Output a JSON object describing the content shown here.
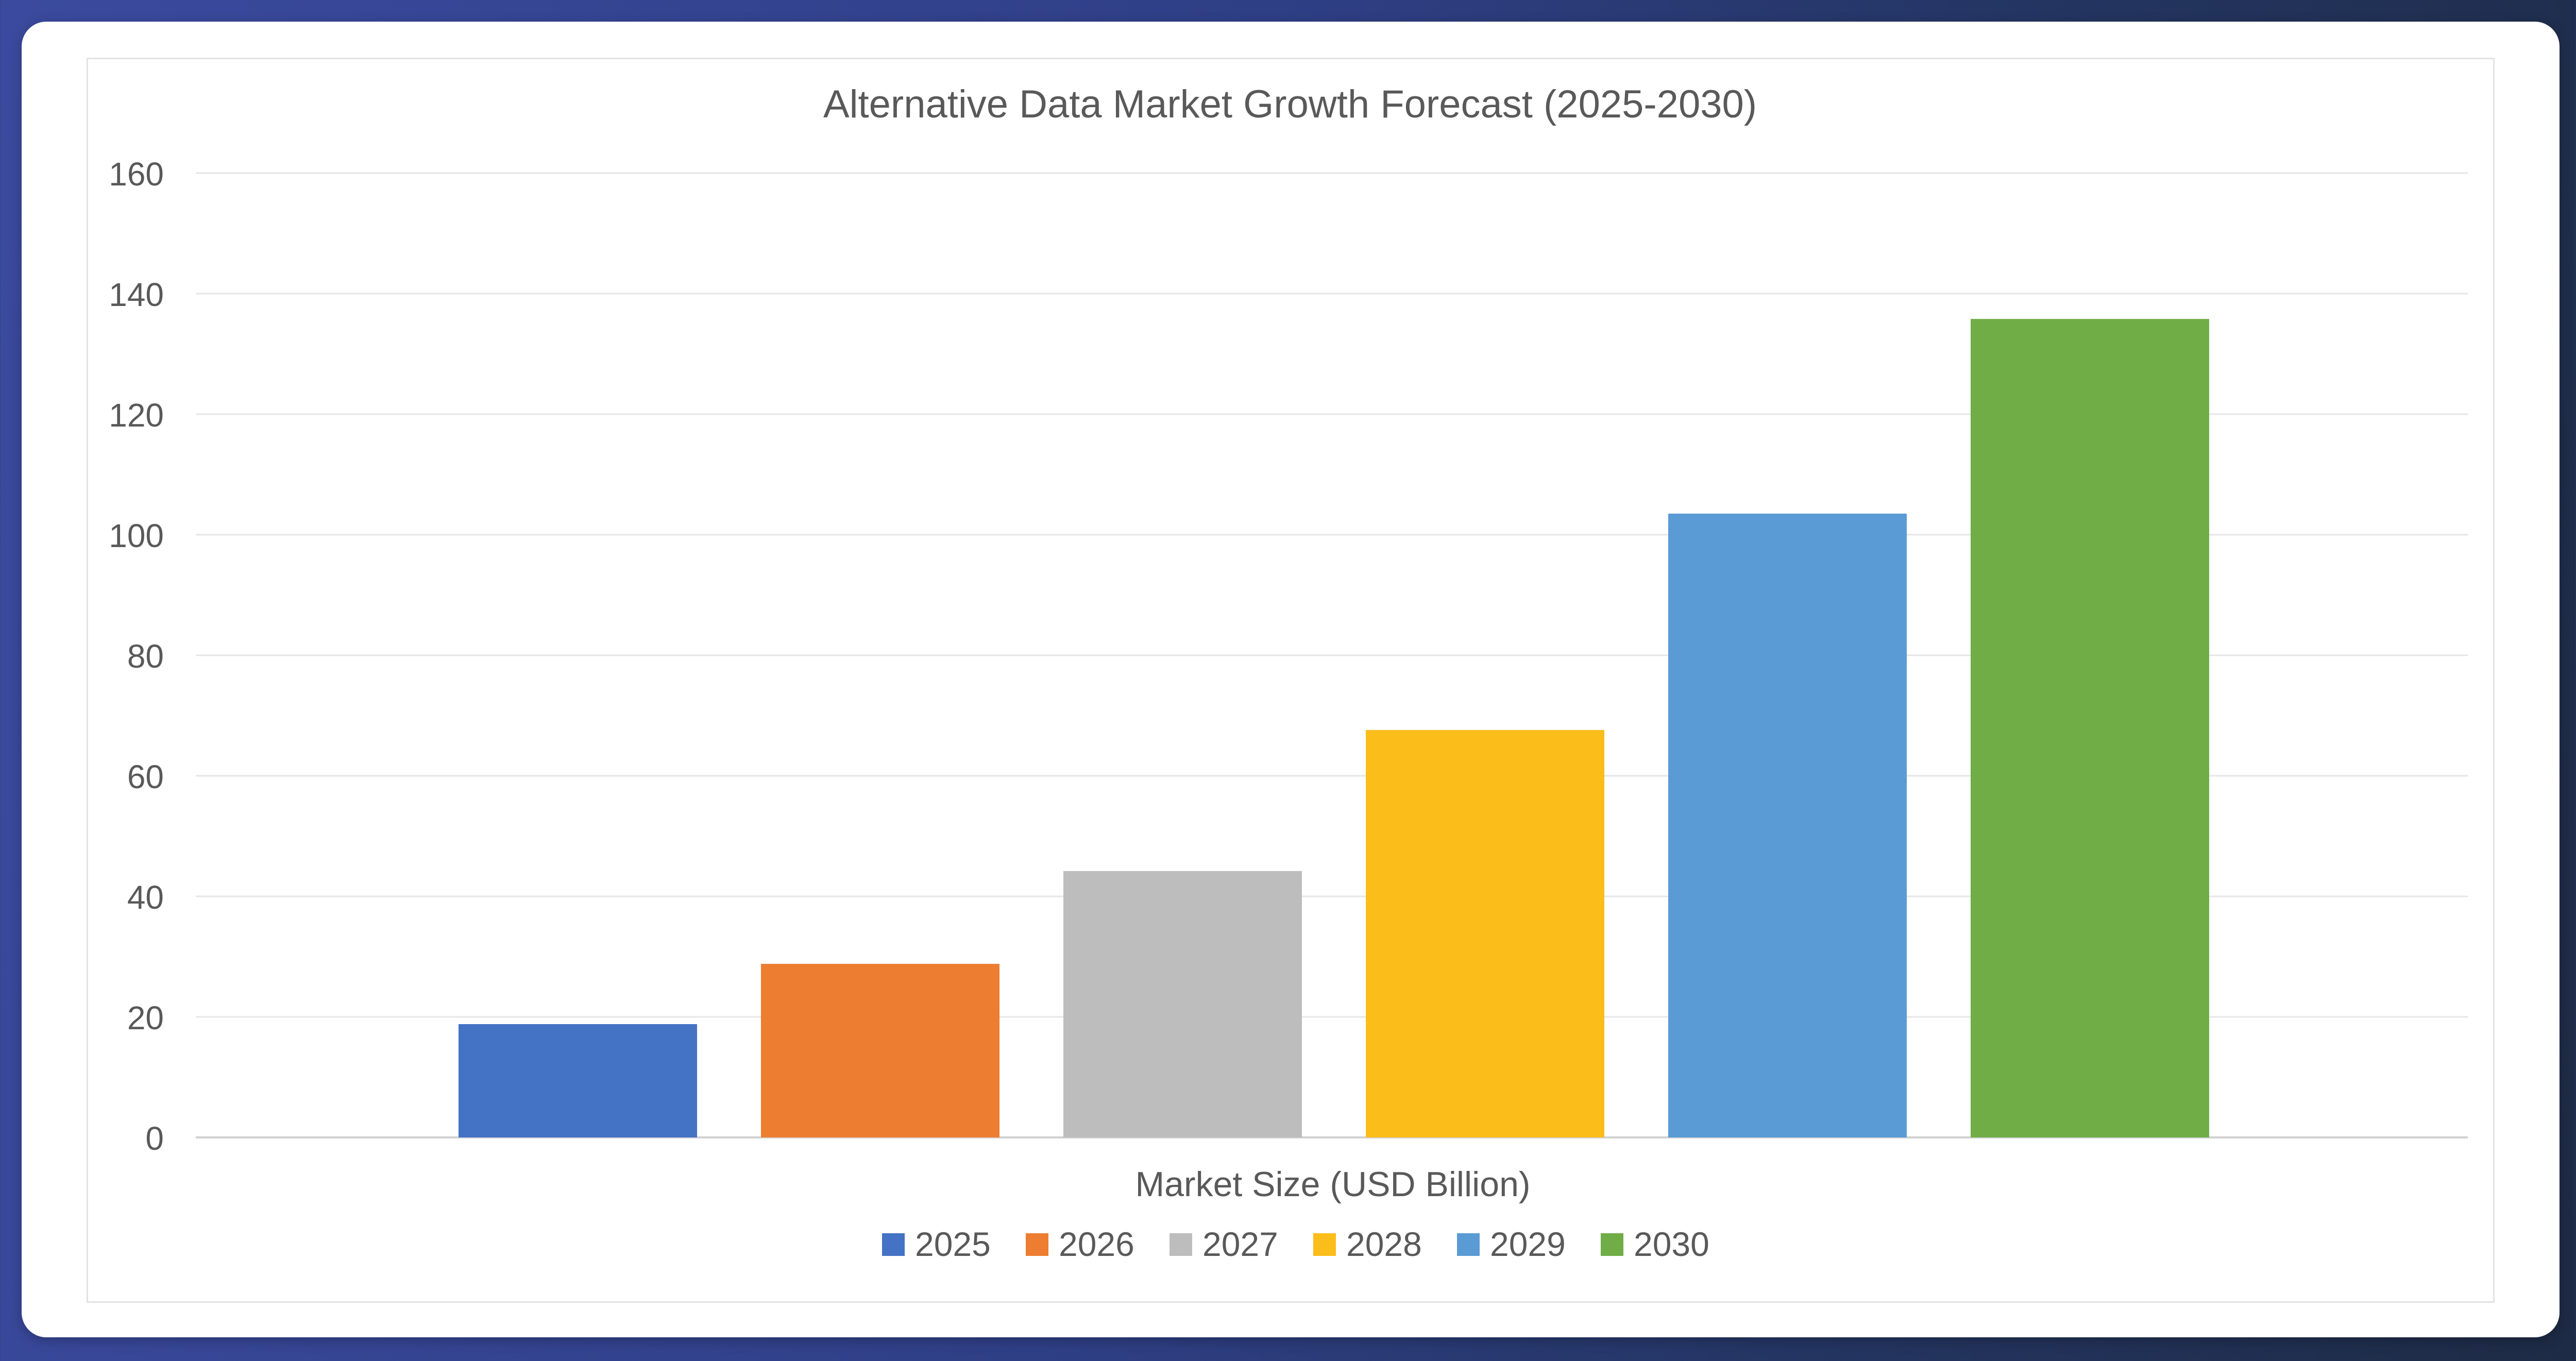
{
  "chart_data": {
    "type": "bar",
    "title": "Alternative Data Market Growth Forecast (2025-2030)",
    "xlabel": "Market Size (USD Billion)",
    "ylabel": "",
    "ylim": [
      0,
      160
    ],
    "yticks": [
      0,
      20,
      40,
      60,
      80,
      100,
      120,
      140,
      160
    ],
    "categories": [
      "Market Size (USD Billion)"
    ],
    "series": [
      {
        "name": "2025",
        "values": [
          18.8
        ],
        "color": "#4472c4"
      },
      {
        "name": "2026",
        "values": [
          28.8
        ],
        "color": "#ed7d31"
      },
      {
        "name": "2027",
        "values": [
          44.2
        ],
        "color": "#bdbdbd"
      },
      {
        "name": "2028",
        "values": [
          67.6
        ],
        "color": "#fbbd1a"
      },
      {
        "name": "2029",
        "values": [
          103.5
        ],
        "color": "#5b9bd5"
      },
      {
        "name": "2030",
        "values": [
          135.8
        ],
        "color": "#70ad47"
      }
    ],
    "grid": true,
    "legend": "bottom"
  }
}
